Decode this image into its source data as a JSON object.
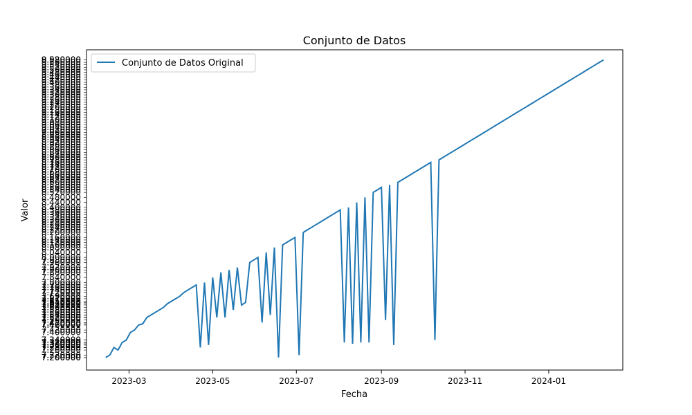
{
  "chart_data": {
    "type": "line",
    "title": "Conjunto de Datos",
    "xlabel": "Fecha",
    "ylabel": "Valor",
    "legend": "upper-left",
    "grid": false,
    "xticks": [
      "2023-03",
      "2023-05",
      "2023-07",
      "2023-09",
      "2023-11",
      "2024-01"
    ],
    "ytick_top": "8.920000",
    "ytick_bottom": "7.200000",
    "series": [
      {
        "name": "Conjunto de Datos Original",
        "color": "#1f77b4",
        "x": [
          "2023-02-12",
          "2023-02-15",
          "2023-02-18",
          "2023-02-21",
          "2023-02-24",
          "2023-02-27",
          "2023-03-02",
          "2023-03-05",
          "2023-03-08",
          "2023-03-11",
          "2023-03-14",
          "2023-03-17",
          "2023-03-20",
          "2023-03-23",
          "2023-03-26",
          "2023-03-29",
          "2023-04-01",
          "2023-04-04",
          "2023-04-07",
          "2023-04-10",
          "2023-04-13",
          "2023-04-16",
          "2023-04-19",
          "2023-04-22",
          "2023-04-25",
          "2023-04-28",
          "2023-05-01",
          "2023-05-04",
          "2023-05-07",
          "2023-05-10",
          "2023-05-13",
          "2023-05-16",
          "2023-05-19",
          "2023-05-22",
          "2023-05-25",
          "2023-05-28",
          "2023-05-31",
          "2023-06-03",
          "2023-06-06",
          "2023-06-09",
          "2023-06-12",
          "2023-06-15",
          "2023-06-18",
          "2023-06-21",
          "2023-06-24",
          "2023-06-27",
          "2023-06-30",
          "2023-07-03",
          "2023-07-06",
          "2023-07-09",
          "2023-07-12",
          "2023-07-15",
          "2023-07-18",
          "2023-07-21",
          "2023-07-24",
          "2023-07-27",
          "2023-07-30",
          "2023-08-02",
          "2023-08-05",
          "2023-08-08",
          "2023-08-11",
          "2023-08-14",
          "2023-08-17",
          "2023-08-20",
          "2023-08-23",
          "2023-08-26",
          "2023-08-29",
          "2023-09-01",
          "2023-09-04",
          "2023-09-07",
          "2023-09-10",
          "2023-09-13",
          "2023-09-16",
          "2023-09-19",
          "2023-09-22",
          "2023-09-25",
          "2023-09-28",
          "2023-10-01",
          "2023-10-04",
          "2023-10-07",
          "2023-10-10",
          "2023-10-13",
          "2023-10-16",
          "2023-10-19",
          "2023-10-22",
          "2023-10-25",
          "2023-10-28",
          "2023-10-31",
          "2023-11-03",
          "2023-11-06",
          "2023-11-09",
          "2023-11-12",
          "2023-11-15",
          "2023-11-18",
          "2023-11-21",
          "2023-11-24",
          "2023-11-27",
          "2023-11-30",
          "2023-12-03",
          "2023-12-06",
          "2023-12-09",
          "2023-12-12",
          "2023-12-15",
          "2023-12-18",
          "2023-12-21",
          "2023-12-24",
          "2023-12-27",
          "2023-12-30",
          "2024-01-02",
          "2024-01-05",
          "2024-01-08",
          "2024-01-11",
          "2024-01-14",
          "2024-01-17",
          "2024-01-20",
          "2024-01-23",
          "2024-01-26",
          "2024-01-29",
          "2024-02-01",
          "2024-02-04",
          "2024-02-07",
          "2024-02-10"
        ],
        "y": [
          7.2,
          7.22,
          7.28,
          7.26,
          7.32,
          7.34,
          7.4,
          7.42,
          7.46,
          7.47,
          7.52,
          7.54,
          7.56,
          7.58,
          7.6,
          7.63,
          7.65,
          7.67,
          7.69,
          7.72,
          7.74,
          7.76,
          7.78,
          7.28,
          7.8,
          7.3,
          7.84,
          7.52,
          7.88,
          7.52,
          7.9,
          7.58,
          7.92,
          7.62,
          7.64,
          7.96,
          7.98,
          8.0,
          7.48,
          8.04,
          7.54,
          8.08,
          7.2,
          8.1,
          8.12,
          8.14,
          8.16,
          7.22,
          8.2,
          8.22,
          8.24,
          8.26,
          8.28,
          8.3,
          8.32,
          8.34,
          8.36,
          8.38,
          7.32,
          8.4,
          7.31,
          8.44,
          7.32,
          8.48,
          7.32,
          8.52,
          8.54,
          8.56,
          7.5,
          8.58,
          7.3,
          8.6,
          8.62,
          8.64,
          8.66,
          8.68,
          8.7,
          8.72,
          8.74,
          8.76,
          7.34,
          8.78,
          8.8,
          8.82,
          8.84,
          8.86,
          8.88,
          8.9,
          8.92,
          8.94,
          8.96,
          8.98,
          9.0,
          9.02,
          9.04,
          9.06,
          9.08,
          9.1,
          9.12,
          9.14,
          9.16,
          9.18,
          9.2,
          9.22,
          9.24,
          9.26,
          9.28,
          9.3,
          9.32,
          9.34,
          9.36,
          9.38,
          9.4,
          9.42,
          9.44,
          9.46,
          9.48,
          9.5,
          9.52,
          9.54,
          9.56,
          9.58
        ]
      }
    ]
  }
}
